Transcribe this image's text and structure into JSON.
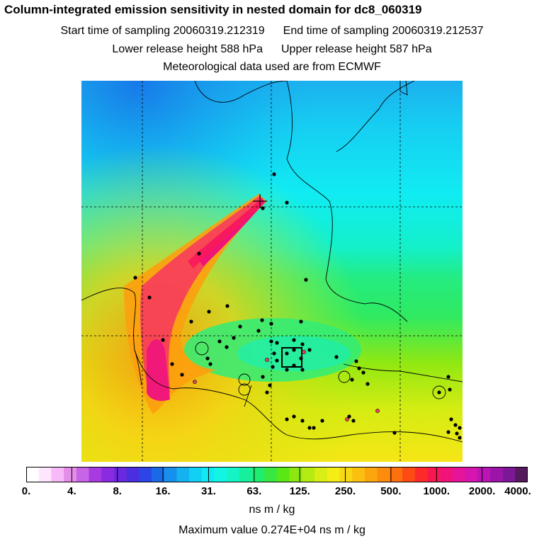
{
  "title": "Column-integrated emission sensitivity in nested domain for dc8_060319",
  "sampling": {
    "start_label": "Start time of sampling 20060319.212319",
    "end_label": "End time of sampling 20060319.212537"
  },
  "release": {
    "lower_label": "Lower release height  588 hPa",
    "upper_label": "Upper release height  587 hPa"
  },
  "met_label": "Meteorological data used are from ECMWF",
  "colorbar": {
    "units": "ns m / kg",
    "tick_labels": [
      "0.",
      "4.",
      "8.",
      "16.",
      "31.",
      "63.",
      "125.",
      "250.",
      "500.",
      "1000.",
      "2000.",
      "4000."
    ],
    "colors": [
      "#ffffff",
      "#ffe6ff",
      "#f7b9f7",
      "#e48ee8",
      "#c864e6",
      "#a73ae0",
      "#8a2be2",
      "#6a28e0",
      "#4b2ee0",
      "#2d44e6",
      "#1a6ae8",
      "#1690ec",
      "#14b2f0",
      "#12d0f4",
      "#10e8f4",
      "#12f4e4",
      "#14f4c4",
      "#16f09c",
      "#20ec70",
      "#38e840",
      "#5ae814",
      "#8ee810",
      "#b4ec12",
      "#d8ee14",
      "#f4ee16",
      "#f8d812",
      "#fcc010",
      "#fca60e",
      "#fc8c0e",
      "#fc700e",
      "#fc4c14",
      "#fc2a28",
      "#f81850",
      "#f01478",
      "#e6149a",
      "#d614b0",
      "#bc14b4",
      "#9c14a8",
      "#7c1898",
      "#541a5c"
    ]
  },
  "max_value_label": "Maximum value  0.274E+04 ns m / kg"
}
